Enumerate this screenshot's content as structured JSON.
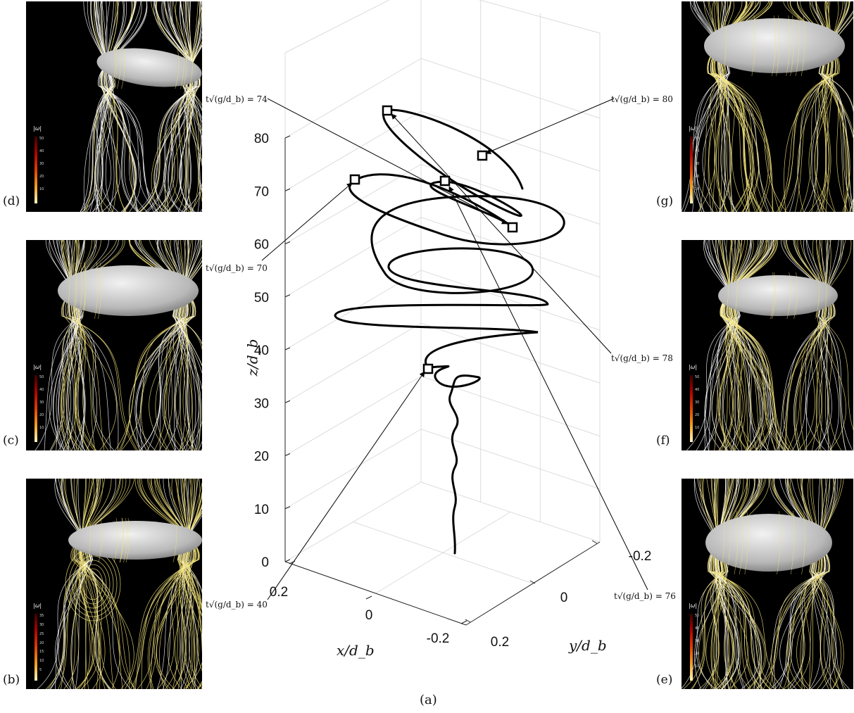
{
  "figure": {
    "caption": "(a)",
    "time_labels": {
      "t74": "t√(g/d_b) = 74",
      "t70": "t√(g/d_b) = 70",
      "t40": "t√(g/d_b) = 40",
      "t80": "t√(g/d_b) = 80",
      "t78": "t√(g/d_b) = 78",
      "t76": "t√(g/d_b) = 76"
    }
  },
  "panels": [
    {
      "id": "d",
      "letter": "(d)",
      "legend_title": "|ω|",
      "legend_ticks": [
        "50",
        "40",
        "30",
        "20",
        "10"
      ]
    },
    {
      "id": "c",
      "letter": "(c)",
      "legend_title": "|ω|",
      "legend_ticks": [
        "50",
        "40",
        "30",
        "20",
        "10"
      ]
    },
    {
      "id": "b",
      "letter": "(b)",
      "legend_title": "|ω|",
      "legend_ticks": [
        "35",
        "30",
        "25",
        "20",
        "15",
        "10",
        "5"
      ]
    },
    {
      "id": "g",
      "letter": "(g)",
      "legend_title": "|ω|",
      "legend_ticks": [
        "50",
        "40",
        "30",
        "20",
        "10"
      ]
    },
    {
      "id": "f",
      "letter": "(f)",
      "legend_title": "|ω|",
      "legend_ticks": [
        "50",
        "40",
        "30",
        "20",
        "10"
      ]
    },
    {
      "id": "e",
      "letter": "(e)",
      "legend_title": "|ω|",
      "legend_ticks": [
        "50",
        "40",
        "30",
        "20",
        "10"
      ]
    }
  ],
  "colors": {
    "trajectory": "#000000",
    "streamline_white": "#ffffff",
    "streamline_yellow": "#f2e27a",
    "bubble": "#cfcfcf",
    "grid": "#dcdcdc"
  },
  "chart_data": {
    "type": "line3d",
    "zlabel": "z/d_b",
    "xlabel": "x/d_b",
    "ylabel": "y/d_b",
    "zlim": [
      0,
      85
    ],
    "z_ticks": [
      0,
      10,
      20,
      30,
      40,
      50,
      60,
      70,
      80
    ],
    "x_ticks": [
      0.2,
      0,
      -0.2
    ],
    "y_ticks": [
      0.2,
      0,
      -0.2
    ],
    "x_tick_labels": [
      "0.2",
      "0",
      "-0.2"
    ],
    "y_tick_labels": [
      "0.2",
      "0",
      "-0.2"
    ],
    "z_tick_labels": [
      "0",
      "10",
      "20",
      "30",
      "40",
      "50",
      "60",
      "70",
      "80"
    ],
    "grid": true,
    "marked_times": [
      40,
      70,
      74,
      76,
      78,
      80
    ]
  }
}
